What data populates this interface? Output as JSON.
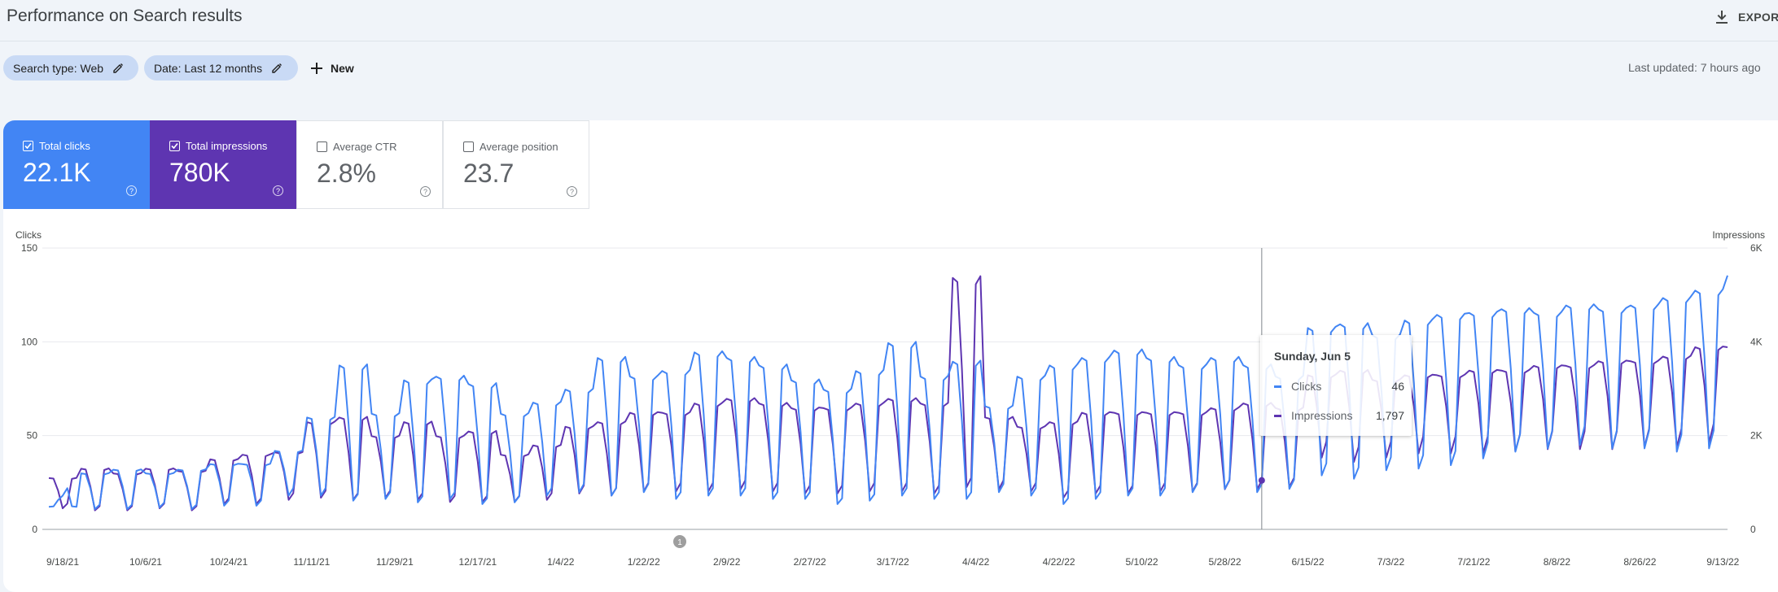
{
  "header": {
    "title": "Performance on Search results",
    "export_label": "EXPORT"
  },
  "filters": {
    "search_type_label": "Search type: Web",
    "date_label": "Date: Last 12 months",
    "new_label": "New",
    "last_updated": "Last updated: 7 hours ago"
  },
  "metrics": [
    {
      "label": "Total clicks",
      "value": "22.1K",
      "checked": true,
      "color": "#4285f4"
    },
    {
      "label": "Total impressions",
      "value": "780K",
      "checked": true,
      "color": "#5e35b1"
    },
    {
      "label": "Average CTR",
      "value": "2.8%",
      "checked": false
    },
    {
      "label": "Average position",
      "value": "23.7",
      "checked": false
    }
  ],
  "help_glyph": "?",
  "annotation_marker": "1",
  "tooltip": {
    "date": "Sunday, Jun 5",
    "rows": [
      {
        "name": "Clicks",
        "value": "46",
        "color": "#4285f4"
      },
      {
        "name": "Impressions",
        "value": "1,797",
        "color": "#5e35b1"
      }
    ]
  },
  "chart_data": {
    "type": "line",
    "y_left_label": "Clicks",
    "y_right_label": "Impressions",
    "y_left_ticks": [
      "0",
      "50",
      "100",
      "150"
    ],
    "y_right_ticks": [
      "0",
      "2K",
      "4K",
      "6K"
    ],
    "y_left_range": [
      0,
      150
    ],
    "y_right_range": [
      0,
      6000
    ],
    "x_start_date": "2021-09-15",
    "x_end_date": "2022-09-14",
    "x_tick_labels": [
      "9/18/21",
      "10/6/21",
      "10/24/21",
      "11/11/21",
      "11/29/21",
      "12/17/21",
      "1/4/22",
      "1/22/22",
      "2/9/22",
      "2/27/22",
      "3/17/22",
      "4/4/22",
      "4/22/22",
      "5/10/22",
      "5/28/22",
      "6/15/22",
      "7/3/22",
      "7/21/22",
      "8/8/22",
      "8/26/22",
      "9/13/22"
    ],
    "grid": true,
    "series": [
      {
        "name": "Clicks",
        "color": "#4285f4",
        "axis": "left",
        "weekly": [
          {
            "weekday_avg": 12,
            "weekend_avg": 20
          },
          {
            "weekday_avg": 30,
            "weekend_avg": 12
          },
          {
            "weekday_avg": 32,
            "weekend_avg": 12
          },
          {
            "weekday_avg": 30,
            "weekend_avg": 13
          },
          {
            "weekday_avg": 32,
            "weekend_avg": 12
          },
          {
            "weekday_avg": 35,
            "weekend_avg": 14
          },
          {
            "weekday_avg": 35,
            "weekend_avg": 14
          },
          {
            "weekday_avg": 42,
            "weekend_avg": 20
          },
          {
            "weekday_avg": 60,
            "weekend_avg": 20
          },
          {
            "weekday_avg": 88,
            "weekend_avg": 17
          },
          {
            "weekday_avg": 62,
            "weekend_avg": 18
          },
          {
            "weekday_avg": 80,
            "weekend_avg": 16
          },
          {
            "weekday_avg": 82,
            "weekend_avg": 18
          },
          {
            "weekday_avg": 78,
            "weekend_avg": 15
          },
          {
            "weekday_avg": 62,
            "weekend_avg": 16
          },
          {
            "weekday_avg": 68,
            "weekend_avg": 20
          },
          {
            "weekday_avg": 75,
            "weekend_avg": 22
          },
          {
            "weekday_avg": 92,
            "weekend_avg": 20
          },
          {
            "weekday_avg": 82,
            "weekend_avg": 22
          },
          {
            "weekday_avg": 85,
            "weekend_avg": 18
          },
          {
            "weekday_avg": 95,
            "weekend_avg": 20
          },
          {
            "weekday_avg": 92,
            "weekend_avg": 20
          },
          {
            "weekday_avg": 88,
            "weekend_avg": 18
          },
          {
            "weekday_avg": 80,
            "weekend_avg": 18
          },
          {
            "weekday_avg": 75,
            "weekend_avg": 15
          },
          {
            "weekday_avg": 85,
            "weekend_avg": 17
          },
          {
            "weekday_avg": 100,
            "weekend_avg": 20
          },
          {
            "weekday_avg": 82,
            "weekend_avg": 18
          },
          {
            "weekday_avg": 90,
            "weekend_avg": 18
          },
          {
            "weekday_avg": 66,
            "weekend_avg": 22
          },
          {
            "weekday_avg": 82,
            "weekend_avg": 20
          },
          {
            "weekday_avg": 88,
            "weekend_avg": 15
          },
          {
            "weekday_avg": 92,
            "weekend_avg": 18
          },
          {
            "weekday_avg": 96,
            "weekend_avg": 20
          },
          {
            "weekday_avg": 92,
            "weekend_avg": 20
          },
          {
            "weekday_avg": 88,
            "weekend_avg": 22
          },
          {
            "weekday_avg": 92,
            "weekend_avg": 24
          },
          {
            "weekday_avg": 88,
            "weekend_avg": 22
          },
          {
            "weekday_avg": 82,
            "weekend_avg": 24
          },
          {
            "weekday_avg": 108,
            "weekend_avg": 32
          },
          {
            "weekday_avg": 110,
            "weekend_avg": 30
          },
          {
            "weekday_avg": 104,
            "weekend_avg": 35
          },
          {
            "weekday_avg": 112,
            "weekend_avg": 36
          },
          {
            "weekday_avg": 115,
            "weekend_avg": 38
          },
          {
            "weekday_avg": 116,
            "weekend_avg": 42
          },
          {
            "weekday_avg": 118,
            "weekend_avg": 46
          },
          {
            "weekday_avg": 116,
            "weekend_avg": 48
          },
          {
            "weekday_avg": 120,
            "weekend_avg": 50
          },
          {
            "weekday_avg": 118,
            "weekend_avg": 48
          },
          {
            "weekday_avg": 120,
            "weekend_avg": 48
          },
          {
            "weekday_avg": 124,
            "weekend_avg": 46
          },
          {
            "weekday_avg": 128,
            "weekend_avg": 48
          },
          {
            "weekday_avg": 136,
            "weekend_avg": 56
          }
        ]
      },
      {
        "name": "Impressions",
        "color": "#5e35b1",
        "axis": "right",
        "weekly": [
          {
            "weekday_avg": 1100,
            "weekend_avg": 500
          },
          {
            "weekday_avg": 1300,
            "weekend_avg": 450
          },
          {
            "weekday_avg": 1200,
            "weekend_avg": 450
          },
          {
            "weekday_avg": 1300,
            "weekend_avg": 500
          },
          {
            "weekday_avg": 1250,
            "weekend_avg": 450
          },
          {
            "weekday_avg": 1500,
            "weekend_avg": 600
          },
          {
            "weekday_avg": 1600,
            "weekend_avg": 600
          },
          {
            "weekday_avg": 1650,
            "weekend_avg": 700
          },
          {
            "weekday_avg": 2300,
            "weekend_avg": 750
          },
          {
            "weekday_avg": 2400,
            "weekend_avg": 700
          },
          {
            "weekday_avg": 2000,
            "weekend_avg": 750
          },
          {
            "weekday_avg": 2300,
            "weekend_avg": 700
          },
          {
            "weekday_avg": 2000,
            "weekend_avg": 650
          },
          {
            "weekday_avg": 2100,
            "weekend_avg": 650
          },
          {
            "weekday_avg": 1600,
            "weekend_avg": 650
          },
          {
            "weekday_avg": 1800,
            "weekend_avg": 700
          },
          {
            "weekday_avg": 2200,
            "weekend_avg": 850
          },
          {
            "weekday_avg": 2300,
            "weekend_avg": 800
          },
          {
            "weekday_avg": 2500,
            "weekend_avg": 900
          },
          {
            "weekday_avg": 2500,
            "weekend_avg": 900
          },
          {
            "weekday_avg": 2700,
            "weekend_avg": 900
          },
          {
            "weekday_avg": 2800,
            "weekend_avg": 950
          },
          {
            "weekday_avg": 2700,
            "weekend_avg": 900
          },
          {
            "weekday_avg": 2600,
            "weekend_avg": 850
          },
          {
            "weekday_avg": 2600,
            "weekend_avg": 850
          },
          {
            "weekday_avg": 2700,
            "weekend_avg": 900
          },
          {
            "weekday_avg": 2800,
            "weekend_avg": 900
          },
          {
            "weekday_avg": 2700,
            "weekend_avg": 850
          },
          {
            "weekday_avg": 5400,
            "weekend_avg": 1000
          },
          {
            "weekday_avg": 2400,
            "weekend_avg": 950
          },
          {
            "weekday_avg": 2200,
            "weekend_avg": 900
          },
          {
            "weekday_avg": 2300,
            "weekend_avg": 750
          },
          {
            "weekday_avg": 2500,
            "weekend_avg": 850
          },
          {
            "weekday_avg": 2500,
            "weekend_avg": 850
          },
          {
            "weekday_avg": 2500,
            "weekend_avg": 900
          },
          {
            "weekday_avg": 2500,
            "weekend_avg": 900
          },
          {
            "weekday_avg": 2600,
            "weekend_avg": 950
          },
          {
            "weekday_avg": 2700,
            "weekend_avg": 950
          },
          {
            "weekday_avg": 2600,
            "weekend_avg": 1000
          },
          {
            "weekday_avg": 3300,
            "weekend_avg": 1700
          },
          {
            "weekday_avg": 3400,
            "weekend_avg": 1600
          },
          {
            "weekday_avg": 3200,
            "weekend_avg": 1700
          },
          {
            "weekday_avg": 3300,
            "weekend_avg": 1800
          },
          {
            "weekday_avg": 3300,
            "weekend_avg": 1800
          },
          {
            "weekday_avg": 3400,
            "weekend_avg": 1800
          },
          {
            "weekday_avg": 3400,
            "weekend_avg": 1850
          },
          {
            "weekday_avg": 3500,
            "weekend_avg": 1900
          },
          {
            "weekday_avg": 3500,
            "weekend_avg": 1900
          },
          {
            "weekday_avg": 3600,
            "weekend_avg": 1900
          },
          {
            "weekday_avg": 3600,
            "weekend_avg": 1950
          },
          {
            "weekday_avg": 3700,
            "weekend_avg": 1950
          },
          {
            "weekday_avg": 3900,
            "weekend_avg": 2050
          }
        ]
      }
    ],
    "hover_date": "2022-06-05"
  }
}
